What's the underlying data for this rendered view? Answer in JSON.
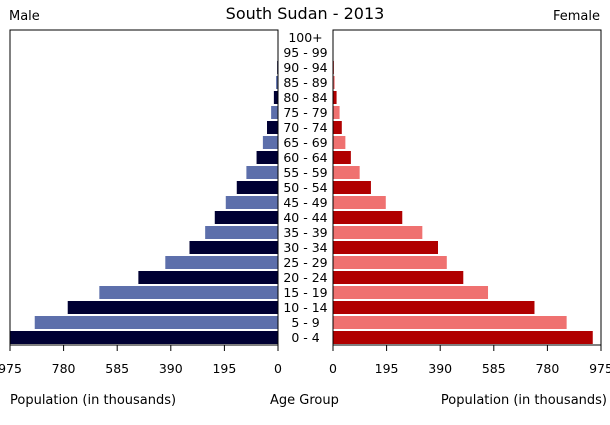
{
  "chart_data": {
    "type": "bar",
    "orientation": "horizontal",
    "title": "South Sudan - 2013",
    "left_label": "Male",
    "right_label": "Female",
    "xlabel_left": "Population (in thousands)",
    "xlabel_center": "Age Group",
    "xlabel_right": "Population (in thousands)",
    "xlim": [
      0,
      975
    ],
    "x_ticks": [
      0,
      195,
      390,
      585,
      780,
      975
    ],
    "categories": [
      "0 - 4",
      "5 - 9",
      "10 - 14",
      "15 - 19",
      "20 - 24",
      "25 - 29",
      "30 - 34",
      "35 - 39",
      "40 - 44",
      "45 - 49",
      "50 - 54",
      "55 - 59",
      "60 - 64",
      "65 - 69",
      "70 - 74",
      "75 - 79",
      "80 - 84",
      "85 - 89",
      "90 - 94",
      "95 - 99",
      "100+"
    ],
    "series": [
      {
        "name": "Male",
        "values": [
          975,
          885,
          765,
          650,
          508,
          410,
          322,
          265,
          230,
          190,
          150,
          115,
          78,
          55,
          40,
          25,
          15,
          7,
          3,
          1,
          0.3
        ]
      },
      {
        "name": "Female",
        "values": [
          945,
          850,
          733,
          564,
          474,
          414,
          382,
          325,
          252,
          192,
          138,
          97,
          65,
          45,
          32,
          24,
          13,
          6,
          3,
          1,
          0.3
        ]
      }
    ],
    "colors": {
      "male_dark": "#000033",
      "male_light": "#5d6fab",
      "female_dark": "#b00000",
      "female_light": "#ef7170"
    },
    "grid": false,
    "legend": "none"
  }
}
